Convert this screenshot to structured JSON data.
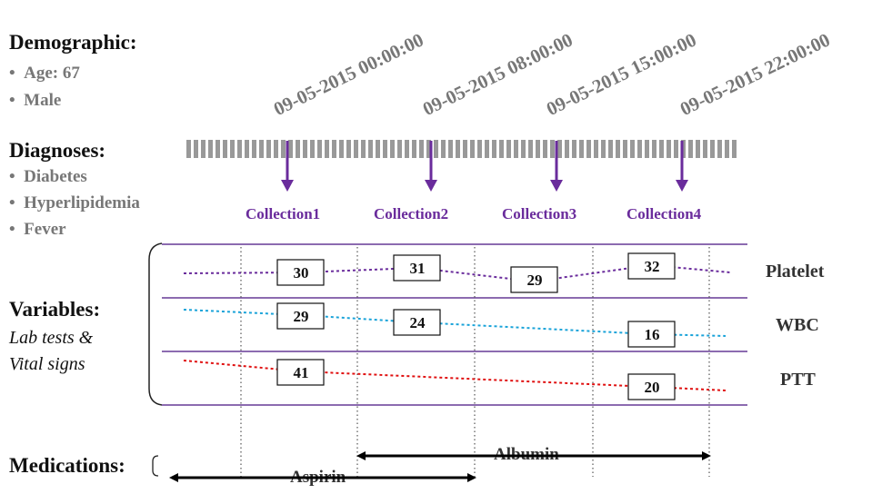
{
  "demographic": {
    "heading": "Demographic:",
    "items": [
      "Age: 67",
      "Male"
    ]
  },
  "diagnoses": {
    "heading": "Diagnoses:",
    "items": [
      "Diabetes",
      "Hyperlipidemia",
      "Fever"
    ]
  },
  "variables": {
    "heading": "Variables:",
    "subtitle_line1": "Lab tests &",
    "subtitle_line2": "Vital signs"
  },
  "medications": {
    "heading": "Medications:",
    "drugs": [
      "Albumin",
      "Aspirin"
    ]
  },
  "timestamps": [
    "09-05-2015  00:00:00",
    "09-05-2015  08:00:00",
    "09-05-2015  15:00:00",
    "09-05-2015  22:00:00"
  ],
  "collections": [
    "Collection1",
    "Collection2",
    "Collection3",
    "Collection4"
  ],
  "series": [
    {
      "name": "Platelet",
      "values": [
        30,
        31,
        29,
        32
      ],
      "color": "#6a2c9c"
    },
    {
      "name": "WBC",
      "values": [
        29,
        24,
        16
      ],
      "color": "#1aa3d9"
    },
    {
      "name": "PTT",
      "values": [
        41,
        20
      ],
      "color": "#e01010"
    }
  ],
  "colors": {
    "purple": "#6a2c9c",
    "timeline_gray": "#999999",
    "row_line": "#8c6bb0"
  }
}
